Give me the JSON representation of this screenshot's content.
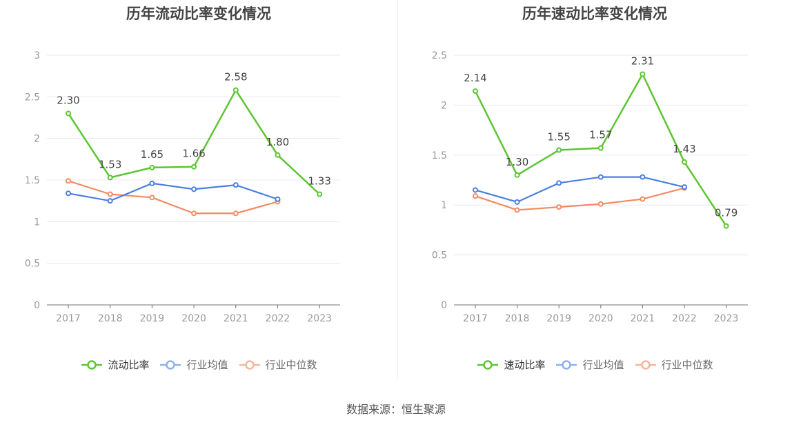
{
  "charts": [
    {
      "title": "历年流动比率变化情况",
      "legend": [
        "流动比率",
        "行业均值",
        "行业中位数"
      ]
    },
    {
      "title": "历年速动比率变化情况",
      "legend": [
        "速动比率",
        "行业均值",
        "行业中位数"
      ]
    }
  ],
  "source_note": "数据来源：恒生聚源",
  "colors": {
    "main": "#5cc531",
    "industry_mean": "#4a7ee0",
    "industry_median": "#f38a62"
  },
  "chart_data": [
    {
      "type": "line",
      "title": "历年流动比率变化情况",
      "categories": [
        "2017",
        "2018",
        "2019",
        "2020",
        "2021",
        "2022",
        "2023"
      ],
      "ylim": [
        0,
        3
      ],
      "yticks": [
        "0",
        "0.5",
        "1",
        "1.5",
        "2",
        "2.5",
        "3"
      ],
      "series": [
        {
          "name": "流动比率",
          "values": [
            2.3,
            1.53,
            1.65,
            1.66,
            2.58,
            1.8,
            1.33
          ],
          "labels": [
            "2.30",
            "1.53",
            "1.65",
            "1.66",
            "2.58",
            "1.80",
            "1.33"
          ]
        },
        {
          "name": "行业均值",
          "values": [
            1.34,
            1.25,
            1.46,
            1.39,
            1.44,
            1.27,
            null
          ]
        },
        {
          "name": "行业中位数",
          "values": [
            1.49,
            1.33,
            1.29,
            1.1,
            1.1,
            1.24,
            null
          ]
        }
      ],
      "grid": true,
      "legend_position": "bottom"
    },
    {
      "type": "line",
      "title": "历年速动比率变化情况",
      "categories": [
        "2017",
        "2018",
        "2019",
        "2020",
        "2021",
        "2022",
        "2023"
      ],
      "ylim": [
        0,
        2.5
      ],
      "yticks": [
        "0",
        "0.5",
        "1",
        "1.5",
        "2",
        "2.5"
      ],
      "series": [
        {
          "name": "速动比率",
          "values": [
            2.14,
            1.3,
            1.55,
            1.57,
            2.31,
            1.43,
            0.79
          ],
          "labels": [
            "2.14",
            "1.30",
            "1.55",
            "1.57",
            "2.31",
            "1.43",
            "0.79"
          ]
        },
        {
          "name": "行业均值",
          "values": [
            1.15,
            1.03,
            1.22,
            1.28,
            1.28,
            1.18,
            null
          ]
        },
        {
          "name": "行业中位数",
          "values": [
            1.09,
            0.95,
            0.98,
            1.01,
            1.06,
            1.17,
            null
          ]
        }
      ],
      "grid": true,
      "legend_position": "bottom"
    }
  ]
}
